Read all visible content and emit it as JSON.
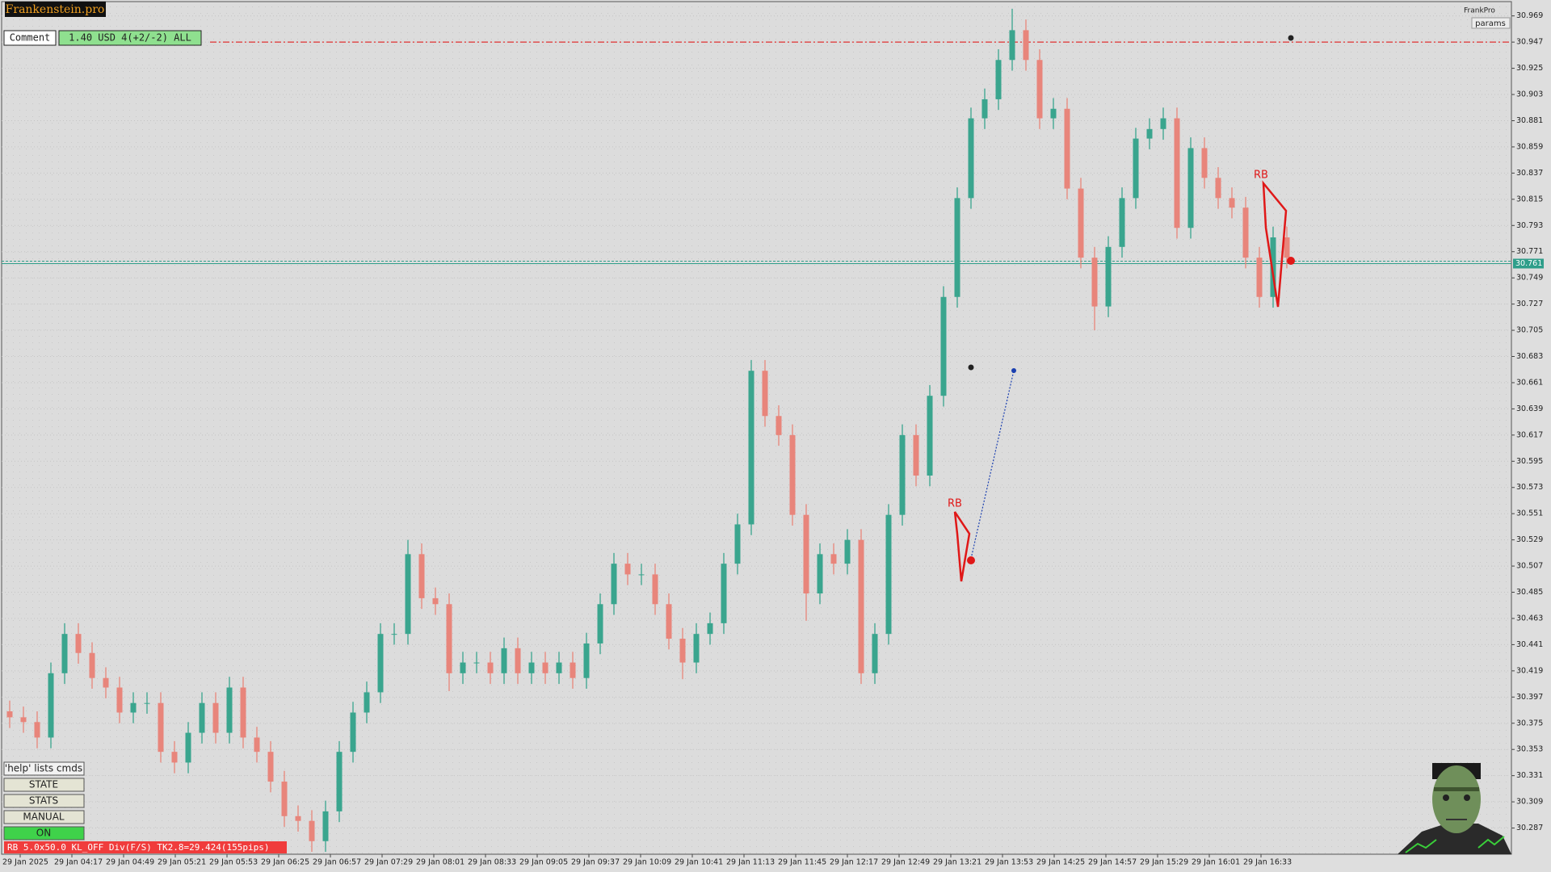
{
  "chart_data": {
    "type": "candlestick",
    "ylim": [
      30.265,
      30.981
    ],
    "yticks": [
      30.287,
      30.309,
      30.331,
      30.353,
      30.375,
      30.397,
      30.419,
      30.441,
      30.463,
      30.485,
      30.507,
      30.529,
      30.551,
      30.573,
      30.595,
      30.617,
      30.639,
      30.661,
      30.683,
      30.705,
      30.727,
      30.749,
      30.771,
      30.793,
      30.815,
      30.837,
      30.859,
      30.881,
      30.903,
      30.925,
      30.947,
      30.969
    ],
    "grid": true,
    "up_color": "#3aa58e",
    "down_color": "#e8857b",
    "x_labels": [
      "29 Jan 2025",
      "29 Jan 04:17",
      "29 Jan 04:49",
      "29 Jan 05:21",
      "29 Jan 05:53",
      "29 Jan 06:25",
      "29 Jan 06:57",
      "29 Jan 07:29",
      "29 Jan 08:01",
      "29 Jan 08:33",
      "29 Jan 09:05",
      "29 Jan 09:37",
      "29 Jan 10:09",
      "29 Jan 10:41",
      "29 Jan 11:13",
      "29 Jan 11:45",
      "29 Jan 12:17",
      "29 Jan 12:49",
      "29 Jan 13:21",
      "29 Jan 13:53",
      "29 Jan 14:25",
      "29 Jan 14:57",
      "29 Jan 15:29",
      "29 Jan 16:01",
      "29 Jan 16:33"
    ],
    "open": [
      30.385,
      30.38,
      30.376,
      30.363,
      30.417,
      30.45,
      30.434,
      30.413,
      30.405,
      30.384,
      30.392,
      30.392,
      30.351,
      30.342,
      30.367,
      30.392,
      30.367,
      30.405,
      30.363,
      30.351,
      30.326,
      30.297,
      30.293,
      30.276,
      30.301,
      30.351,
      30.384,
      30.401,
      30.45,
      30.45,
      30.517,
      30.48,
      30.475,
      30.417,
      30.426,
      30.426,
      30.417,
      30.438,
      30.417,
      30.426,
      30.417,
      30.426,
      30.413,
      30.442,
      30.475,
      30.509,
      30.5,
      30.5,
      30.475,
      30.446,
      30.426,
      30.45,
      30.459,
      30.509,
      30.542,
      30.671,
      30.633,
      30.617,
      30.55,
      30.484,
      30.517,
      30.509,
      30.529,
      30.417,
      30.45,
      30.55,
      30.617,
      30.583,
      30.65,
      30.733,
      30.816,
      30.883,
      30.899,
      30.932,
      30.957,
      30.932,
      30.883,
      30.891,
      30.824,
      30.766,
      30.725,
      30.775,
      30.816,
      30.866,
      30.874,
      30.883,
      30.791,
      30.858,
      30.833,
      30.816,
      30.808,
      30.766,
      30.733,
      30.783
    ],
    "high": [
      30.394,
      30.389,
      30.385,
      30.426,
      30.459,
      30.459,
      30.443,
      30.422,
      30.414,
      30.401,
      30.401,
      30.401,
      30.36,
      30.376,
      30.401,
      30.401,
      30.414,
      30.414,
      30.372,
      30.36,
      30.335,
      30.306,
      30.302,
      30.31,
      30.36,
      30.393,
      30.41,
      30.459,
      30.459,
      30.529,
      30.526,
      30.489,
      30.484,
      30.435,
      30.435,
      30.435,
      30.447,
      30.447,
      30.435,
      30.435,
      30.435,
      30.435,
      30.451,
      30.484,
      30.518,
      30.518,
      30.509,
      30.509,
      30.484,
      30.455,
      30.459,
      30.468,
      30.518,
      30.551,
      30.68,
      30.68,
      30.642,
      30.626,
      30.559,
      30.526,
      30.526,
      30.538,
      30.538,
      30.459,
      30.559,
      30.626,
      30.626,
      30.659,
      30.742,
      30.825,
      30.892,
      30.908,
      30.941,
      30.975,
      30.966,
      30.941,
      30.9,
      30.9,
      30.833,
      30.775,
      30.784,
      30.825,
      30.875,
      30.883,
      30.892,
      30.892,
      30.867,
      30.867,
      30.842,
      30.825,
      30.817,
      30.775,
      30.792,
      30.792
    ],
    "low": [
      30.371,
      30.367,
      30.354,
      30.354,
      30.408,
      30.425,
      30.404,
      30.396,
      30.375,
      30.375,
      30.383,
      30.342,
      30.333,
      30.333,
      30.358,
      30.358,
      30.358,
      30.354,
      30.342,
      30.317,
      30.288,
      30.284,
      30.267,
      30.267,
      30.292,
      30.342,
      30.375,
      30.392,
      30.441,
      30.441,
      30.471,
      30.466,
      30.402,
      30.408,
      30.417,
      30.408,
      30.408,
      30.408,
      30.408,
      30.408,
      30.408,
      30.404,
      30.404,
      30.433,
      30.466,
      30.491,
      30.491,
      30.466,
      30.437,
      30.412,
      30.417,
      30.441,
      30.45,
      30.5,
      30.533,
      30.624,
      30.608,
      30.541,
      30.461,
      30.475,
      30.5,
      30.5,
      30.408,
      30.408,
      30.441,
      30.541,
      30.574,
      30.574,
      30.641,
      30.724,
      30.807,
      30.874,
      30.89,
      30.923,
      30.923,
      30.874,
      30.874,
      30.815,
      30.757,
      30.705,
      30.716,
      30.766,
      30.807,
      30.857,
      30.865,
      30.782,
      30.782,
      30.824,
      30.807,
      30.799,
      30.757,
      30.724,
      30.724,
      30.757
    ],
    "close": [
      30.38,
      30.376,
      30.363,
      30.417,
      30.45,
      30.434,
      30.413,
      30.405,
      30.384,
      30.392,
      30.392,
      30.351,
      30.342,
      30.367,
      30.392,
      30.367,
      30.405,
      30.363,
      30.351,
      30.326,
      30.297,
      30.293,
      30.276,
      30.301,
      30.351,
      30.384,
      30.401,
      30.45,
      30.45,
      30.517,
      30.48,
      30.475,
      30.417,
      30.426,
      30.426,
      30.417,
      30.438,
      30.417,
      30.426,
      30.417,
      30.426,
      30.413,
      30.442,
      30.475,
      30.509,
      30.5,
      30.5,
      30.475,
      30.446,
      30.426,
      30.45,
      30.459,
      30.509,
      30.542,
      30.671,
      30.633,
      30.617,
      30.55,
      30.484,
      30.517,
      30.509,
      30.529,
      30.417,
      30.45,
      30.55,
      30.617,
      30.583,
      30.65,
      30.733,
      30.816,
      30.883,
      30.899,
      30.932,
      30.957,
      30.932,
      30.883,
      30.891,
      30.824,
      30.766,
      30.725,
      30.775,
      30.816,
      30.866,
      30.874,
      30.883,
      30.791,
      30.858,
      30.833,
      30.816,
      30.808,
      30.766,
      30.733,
      30.783,
      30.766
    ],
    "levels": [
      {
        "value": 30.947,
        "color": "#e03030"
      },
      {
        "value": 30.761,
        "color": "#2e9e8a"
      }
    ],
    "annotations": [
      {
        "text": "RB"
      },
      {
        "text": "RB"
      }
    ]
  },
  "ui": {
    "logo": "Frankenstein.pro",
    "comment_label": "Comment",
    "comment_value": "1.40 USD 4(+2/-2) ALL",
    "brand": "FrankPro",
    "params": "params",
    "buttons": [
      "'help' lists cmds",
      "STATE",
      "STATS",
      "MANUAL",
      "ON"
    ],
    "status": "RB 5.0x50.0 KL_OFF Div(F/S) TK2.8=29.424(155pips)"
  }
}
